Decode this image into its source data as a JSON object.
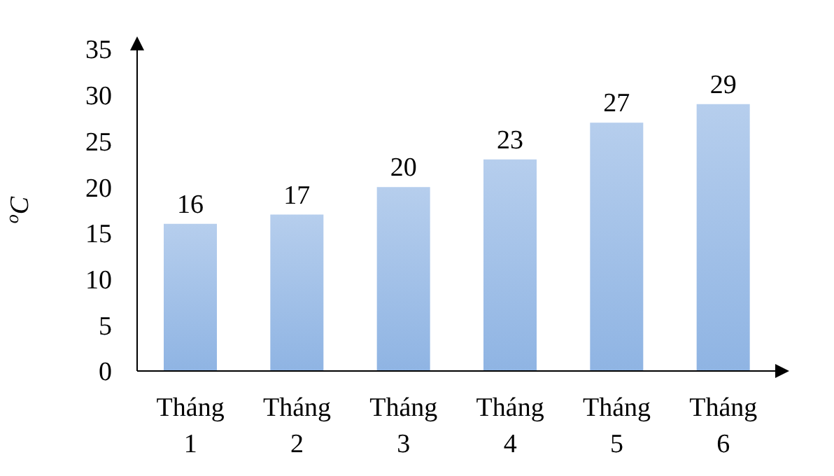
{
  "chart_data": {
    "type": "bar",
    "ylabel": "$^{o}$C",
    "categories": [
      "Tháng 1",
      "Tháng 2",
      "Tháng 3",
      "Tháng 4",
      "Tháng 5",
      "Tháng 6"
    ],
    "values": [
      16,
      17,
      20,
      23,
      27,
      29
    ],
    "color": "#8fb4e3",
    "ylim": [
      0,
      35
    ],
    "yticks": [
      0,
      5,
      10,
      15,
      20,
      25,
      30,
      35
    ],
    "grid": false,
    "data_labels": true
  }
}
